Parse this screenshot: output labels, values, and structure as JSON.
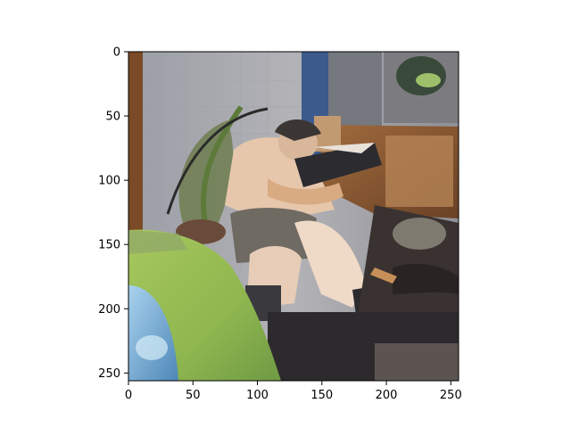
{
  "figure": {
    "background": "#ffffff",
    "image_description_palette": {
      "wall": "#a7a9ae",
      "wood": "#8a5a32",
      "skin": "#e3c4a8",
      "shorts": "#6f6a62",
      "cap": "#3b3633",
      "book": "#2b2b30",
      "cushion_green": "#9ec35a",
      "cushion_blue": "#7fb1d6",
      "floor_dark": "#2d2a2e"
    }
  },
  "chart_data": {
    "type": "image",
    "xlim": [
      0,
      256
    ],
    "ylim": [
      256,
      0
    ],
    "xticks": [
      0,
      50,
      100,
      150,
      200,
      250
    ],
    "yticks": [
      0,
      50,
      100,
      150,
      200,
      250
    ],
    "xtick_labels": [
      "0",
      "50",
      "100",
      "150",
      "200",
      "250"
    ],
    "ytick_labels": [
      "0",
      "50",
      "100",
      "150",
      "200",
      "250"
    ],
    "grid": false
  }
}
